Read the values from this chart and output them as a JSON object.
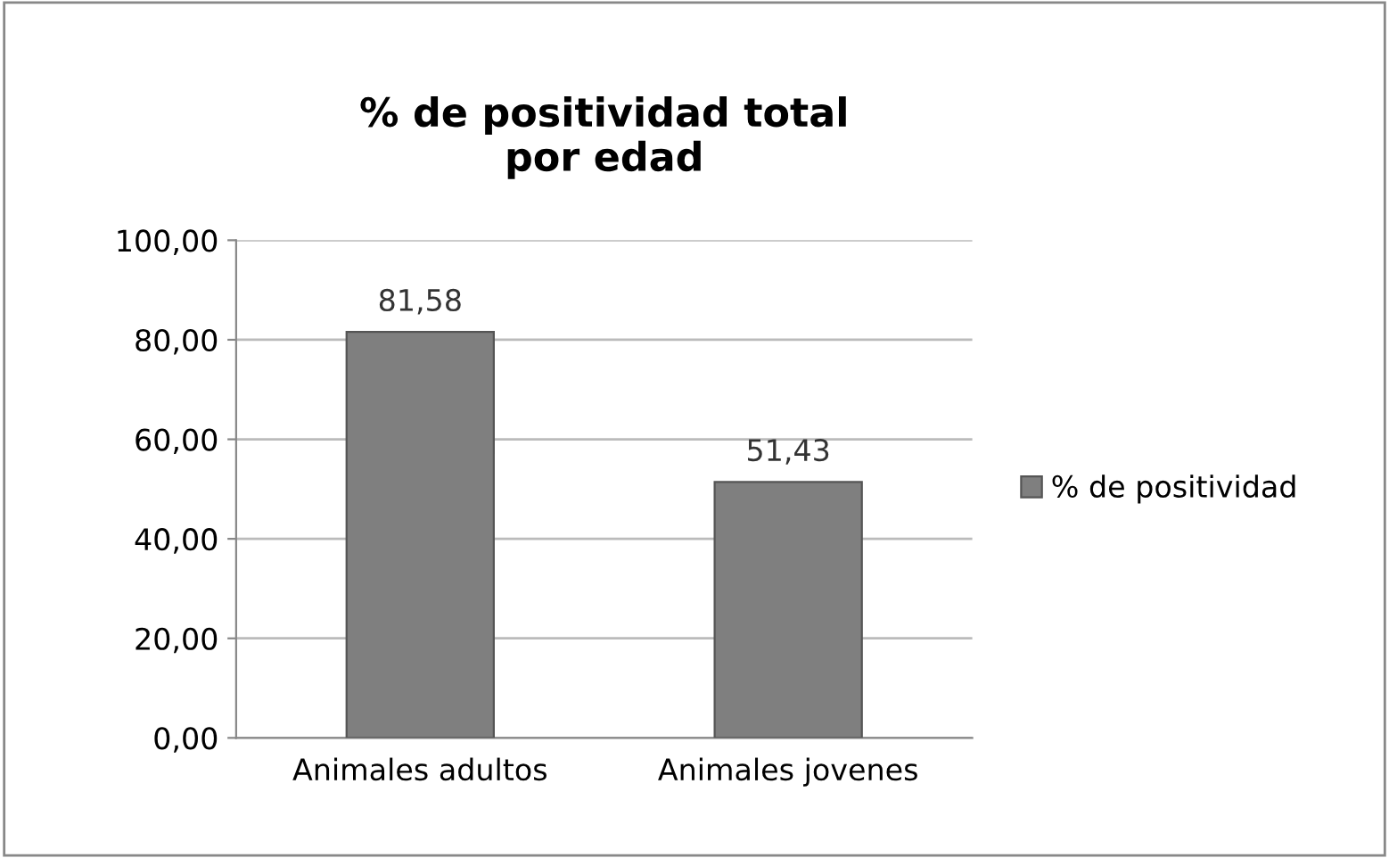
{
  "chart_data": {
    "type": "bar",
    "title": "% de positividad total\npor edad",
    "categories": [
      "Animales adultos",
      "Animales jovenes"
    ],
    "series": [
      {
        "name": "% de positividad",
        "color": "#7f7f7f",
        "values": [
          81.58,
          51.43
        ],
        "value_labels": [
          "81,58",
          "51,43"
        ]
      }
    ],
    "ylim": [
      0,
      100
    ],
    "yticks": [
      {
        "value": 0,
        "label": "0,00"
      },
      {
        "value": 20,
        "label": "20,00"
      },
      {
        "value": 40,
        "label": "40,00"
      },
      {
        "value": 60,
        "label": "60,00"
      },
      {
        "value": 80,
        "label": "80,00"
      },
      {
        "value": 100,
        "label": "100,00"
      }
    ],
    "grid": "y",
    "legend": "right"
  }
}
